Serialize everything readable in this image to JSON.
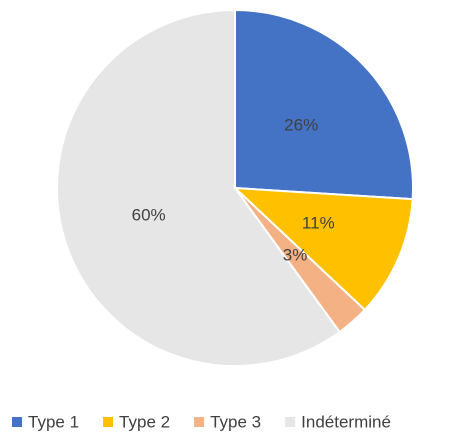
{
  "chart_data": {
    "type": "pie",
    "categories": [
      "Type 1",
      "Type 2",
      "Type 3",
      "Indéterminé"
    ],
    "values": [
      26,
      11,
      3,
      60
    ],
    "value_labels": [
      "26%",
      "11%",
      "3%",
      "60%"
    ],
    "colors": [
      "#4472c4",
      "#ffc000",
      "#f4b183",
      "#e7e6e6"
    ],
    "legend": "bottom"
  }
}
